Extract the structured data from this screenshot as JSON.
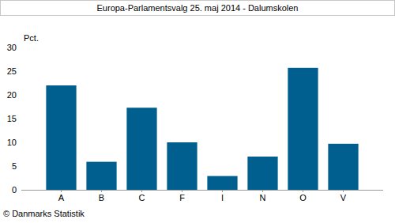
{
  "chart_data": {
    "type": "bar",
    "title": "Europa-Parlamentsvalg 25. maj 2014 - Dalumskolen",
    "y_label": "Pct.",
    "source": "© Danmarks Statistik",
    "categories": [
      "A",
      "B",
      "C",
      "F",
      "I",
      "N",
      "O",
      "V"
    ],
    "values": [
      22,
      5.9,
      17.3,
      10,
      2.9,
      7,
      25.7,
      9.7
    ],
    "color": "#005f8f",
    "ylim": [
      0,
      30
    ],
    "yticks": [
      0,
      5,
      10,
      15,
      20,
      25,
      30
    ],
    "grid": false
  }
}
